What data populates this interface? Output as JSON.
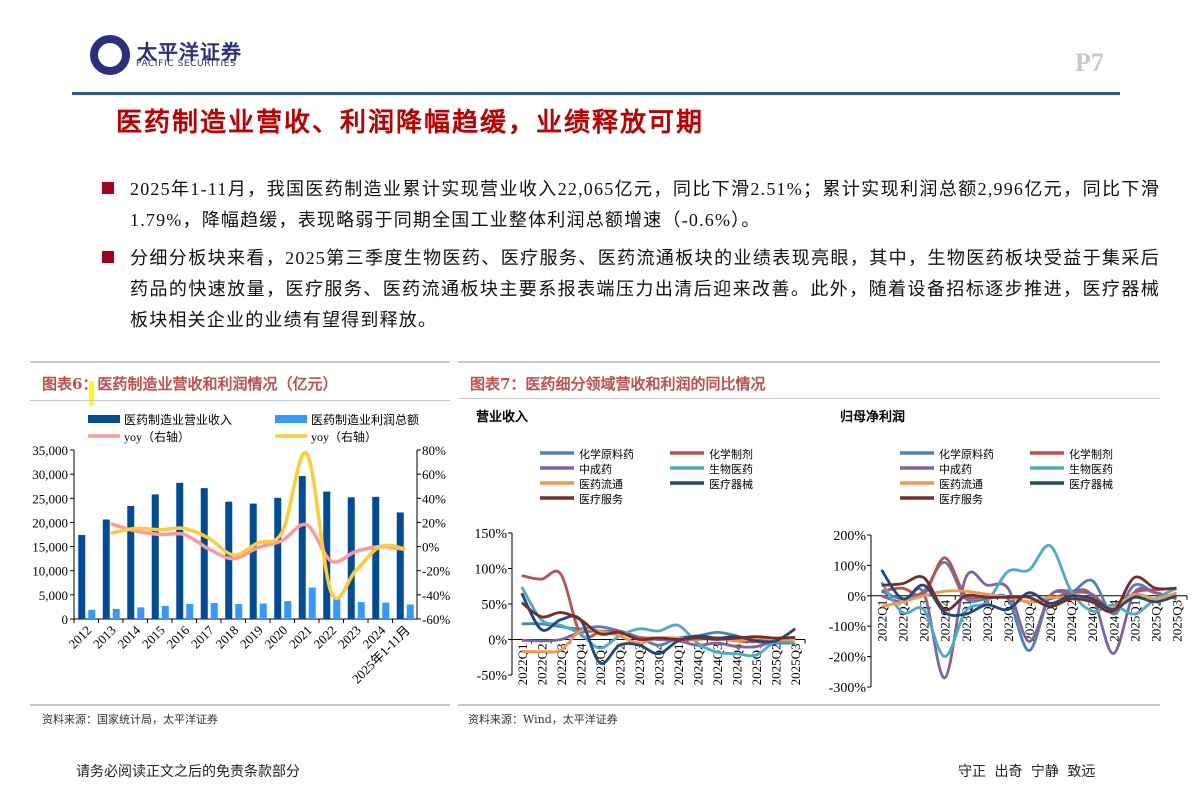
{
  "header": {
    "logo_cn": "太平洋证券",
    "logo_en": "PACIFIC SECURITIES",
    "page": "P7"
  },
  "title": "医药制造业营收、利润降幅趋缓，业绩释放可期",
  "bullets": [
    "2025年1-11月，我国医药制造业累计实现营业收入22,065亿元，同比下滑2.51%；累计实现利润总额2,996亿元，同比下滑1.79%，降幅趋缓，表现略弱于同期全国工业整体利润总额增速（-0.6%）。",
    "分细分板块来看，2025第三季度生物医药、医疗服务、医药流通板块的业绩表现亮眼，其中，生物医药板块受益于集采后药品的快速放量，医疗服务、医药流通板块主要系报表端压力出清后迎来改善。此外，随着设备招标逐步推进，医疗器械板块相关企业的业绩有望得到释放。"
  ],
  "fig6": {
    "title": "图表6：医药制造业营收和利润情况（亿元）",
    "source": "资料来源：国家统计局，太平洋证券"
  },
  "fig7": {
    "title": "图表7：医药细分领域营收和利润的同比情况",
    "source": "资料来源：Wind，太平洋证券"
  },
  "footer": {
    "left": "请务必阅读正文之后的免责条款部分",
    "right": "守正 出奇 宁静 致远"
  },
  "colors": {
    "brand_red": "#c00000",
    "rule_blue": "#2f5597"
  },
  "chart_data": [
    {
      "type": "bar+line",
      "categories": [
        "2012",
        "2013",
        "2014",
        "2015",
        "2016",
        "2017",
        "2018",
        "2019",
        "2020",
        "2021",
        "2022",
        "2023",
        "2024",
        "2025年1-11月"
      ],
      "ylim": [
        0,
        35000
      ],
      "yticks": [
        "0",
        "5,000",
        "10,000",
        "15,000",
        "20,000",
        "25,000",
        "30,000",
        "35,000"
      ],
      "y2lim": [
        -60,
        80
      ],
      "y2ticks": [
        "-60%",
        "-40%",
        "-20%",
        "0%",
        "20%",
        "40%",
        "60%",
        "80%"
      ],
      "legend_placement": "top",
      "series": [
        {
          "name": "医药制造业营业收入",
          "kind": "bar",
          "axis": "left",
          "color": "#004c97",
          "values": [
            17400,
            20600,
            23400,
            25800,
            28200,
            27100,
            24300,
            23900,
            25100,
            29600,
            26400,
            25200,
            25300,
            22065
          ]
        },
        {
          "name": "医药制造业利润总额",
          "kind": "bar",
          "axis": "left",
          "color": "#3399ff",
          "values": [
            1900,
            2100,
            2400,
            2700,
            3100,
            3300,
            3100,
            3200,
            3700,
            6500,
            4300,
            3500,
            3400,
            2996
          ]
        },
        {
          "name": "yoy（右轴）",
          "kind": "line",
          "axis": "right",
          "color": "#ff9999",
          "values": [
            null,
            19,
            13,
            10,
            10,
            -2,
            -10,
            -1,
            5,
            18,
            -12,
            -4,
            0,
            -2.51
          ]
        },
        {
          "name": "yoy（右轴）",
          "kind": "line",
          "axis": "right",
          "color": "#ffcc33",
          "values": [
            null,
            11,
            15,
            14,
            15,
            7,
            -7,
            3,
            12,
            77,
            -38,
            -20,
            0,
            -1.79
          ]
        }
      ]
    },
    {
      "type": "line",
      "title": "营业收入",
      "categories": [
        "2022Q1",
        "2022Q2",
        "2022Q3",
        "2022Q4",
        "2023Q1",
        "2023Q2",
        "2023Q3",
        "2023Q4",
        "2024Q1",
        "2024Q2",
        "2024Q3",
        "2024Q4",
        "2025Q1",
        "2025Q2",
        "2025Q3"
      ],
      "ylim": [
        -50,
        150
      ],
      "yticks": [
        "-50%",
        "0%",
        "50%",
        "100%",
        "150%"
      ],
      "legend_placement": "top",
      "series": [
        {
          "name": "化学原料药",
          "color": "#4f81bd",
          "values": [
            22,
            22,
            18,
            15,
            18,
            12,
            3,
            -8,
            2,
            5,
            10,
            5,
            -3,
            -5,
            -5
          ]
        },
        {
          "name": "化学制剂",
          "color": "#c0504d",
          "values": [
            90,
            85,
            92,
            8,
            10,
            12,
            3,
            2,
            0,
            0,
            2,
            -2,
            -3,
            0,
            2
          ]
        },
        {
          "name": "中成药",
          "color": "#8064a2",
          "values": [
            -1,
            -2,
            0,
            10,
            12,
            10,
            2,
            0,
            -2,
            -8,
            -5,
            -10,
            -10,
            -2,
            2
          ]
        },
        {
          "name": "生物医药",
          "color": "#4bacc6",
          "values": [
            74,
            28,
            20,
            8,
            -12,
            5,
            15,
            12,
            20,
            -5,
            -18,
            -20,
            -22,
            -3,
            -5
          ]
        },
        {
          "name": "医药流通",
          "color": "#f79646",
          "values": [
            -17,
            -17,
            -15,
            12,
            12,
            5,
            -5,
            2,
            2,
            0,
            2,
            -2,
            2,
            0,
            0
          ]
        },
        {
          "name": "医疗器械",
          "color": "#1f497d",
          "values": [
            65,
            14,
            28,
            28,
            -33,
            -8,
            -8,
            -20,
            -2,
            5,
            2,
            4,
            -2,
            -2,
            15
          ]
        },
        {
          "name": "医疗服务",
          "color": "#772c2a",
          "values": [
            52,
            32,
            38,
            28,
            8,
            10,
            0,
            2,
            0,
            2,
            0,
            2,
            4,
            2,
            3
          ]
        }
      ]
    },
    {
      "type": "line",
      "title": "归母净利润",
      "categories": [
        "2022Q1",
        "2022Q2",
        "2022Q3",
        "2022Q4",
        "2023Q1",
        "2023Q2",
        "2023Q3",
        "2023Q4",
        "2024Q1",
        "2024Q2",
        "2024Q3",
        "2024Q4",
        "2025Q1",
        "2025Q2",
        "2025Q3"
      ],
      "ylim": [
        -300,
        200
      ],
      "yticks": [
        "-300%",
        "-200%",
        "-100%",
        "0%",
        "100%",
        "200%"
      ],
      "legend_placement": "top",
      "series": [
        {
          "name": "化学原料药",
          "color": "#4f81bd",
          "values": [
            15,
            -10,
            15,
            110,
            -10,
            -10,
            -10,
            -180,
            0,
            10,
            50,
            -60,
            35,
            10,
            -5
          ]
        },
        {
          "name": "化学制剂",
          "color": "#c0504d",
          "values": [
            15,
            25,
            5,
            125,
            0,
            0,
            -5,
            -20,
            -10,
            10,
            5,
            -50,
            10,
            20,
            25
          ]
        },
        {
          "name": "中成药",
          "color": "#8064a2",
          "values": [
            0,
            -20,
            10,
            -270,
            60,
            35,
            25,
            -150,
            0,
            15,
            0,
            -190,
            10,
            10,
            -10
          ]
        },
        {
          "name": "生物医药",
          "color": "#4bacc6",
          "values": [
            45,
            -55,
            -45,
            -200,
            -50,
            -20,
            80,
            85,
            165,
            15,
            -50,
            -30,
            -60,
            -10,
            25
          ]
        },
        {
          "name": "医药流通",
          "color": "#f79646",
          "values": [
            -35,
            -20,
            0,
            15,
            15,
            5,
            -5,
            -20,
            -5,
            -10,
            -15,
            -40,
            5,
            -10,
            10
          ]
        },
        {
          "name": "医疗器械",
          "color": "#1f497d",
          "values": [
            85,
            -10,
            35,
            -55,
            -60,
            -30,
            -45,
            10,
            -25,
            0,
            -10,
            -45,
            -5,
            -20,
            0
          ]
        },
        {
          "name": "医疗服务",
          "color": "#772c2a",
          "values": [
            35,
            40,
            60,
            -45,
            0,
            -5,
            -5,
            -5,
            -35,
            -10,
            -20,
            -50,
            60,
            25,
            25
          ]
        }
      ]
    }
  ]
}
